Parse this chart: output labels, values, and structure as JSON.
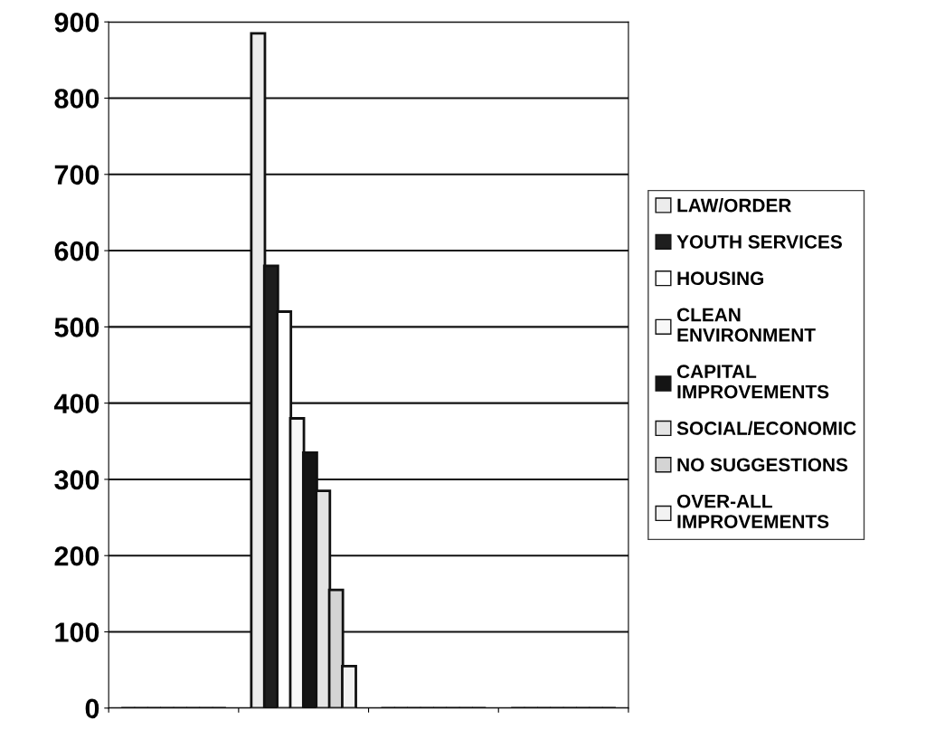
{
  "chart_data": {
    "type": "bar",
    "categories": [
      null,
      null,
      null,
      null
    ],
    "series": [
      {
        "name": "LAW/ORDER",
        "color": "#ececec",
        "values": [
          null,
          885,
          null,
          null
        ]
      },
      {
        "name": "YOUTH SERVICES",
        "color": "#1e1e1e",
        "values": [
          null,
          580,
          null,
          null
        ]
      },
      {
        "name": "HOUSING",
        "color": "#ffffff",
        "values": [
          null,
          520,
          null,
          null
        ]
      },
      {
        "name": "CLEAN ENVIRONMENT",
        "color": "#f8f8f8",
        "values": [
          null,
          380,
          null,
          null
        ]
      },
      {
        "name": "CAPITAL IMPROVEMENTS",
        "color": "#141414",
        "values": [
          null,
          335,
          null,
          null
        ]
      },
      {
        "name": "SOCIAL/ECONOMIC",
        "color": "#e4e4e4",
        "values": [
          null,
          285,
          null,
          null
        ]
      },
      {
        "name": "NO SUGGESTIONS",
        "color": "#d4d4d4",
        "values": [
          null,
          155,
          null,
          null
        ]
      },
      {
        "name": "OVER-ALL IMPROVEMENTS",
        "color": "#f2f2f2",
        "values": [
          null,
          55,
          null,
          null
        ]
      }
    ],
    "ylim": [
      0,
      900
    ],
    "yticks": [
      0,
      100,
      200,
      300,
      400,
      500,
      600,
      700,
      800,
      900
    ],
    "grid": "y",
    "legend": "right"
  }
}
